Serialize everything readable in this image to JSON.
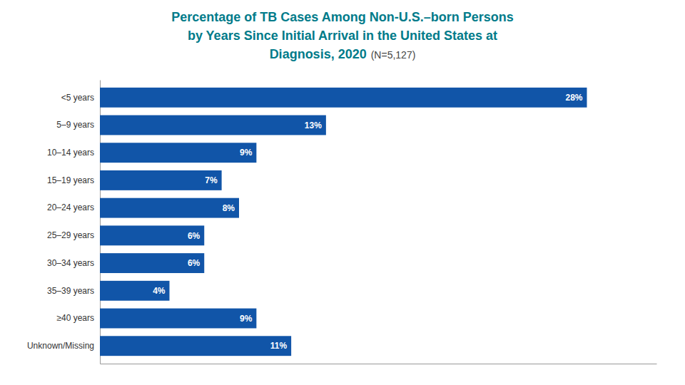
{
  "chart_data": {
    "type": "bar",
    "orientation": "horizontal",
    "title": [
      "Percentage of TB Cases Among Non-U.S.–born Persons",
      "by Years Since Initial Arrival in the United States at",
      "Diagnosis, 2020"
    ],
    "subtitle": "(N=5,127)",
    "categories": [
      "<5 years",
      "5–9 years",
      "10–14 years",
      "15–19 years",
      "20–24 years",
      "25–29 years",
      "30–34 years",
      "35–39 years",
      "≥40 years",
      "Unknown/Missing"
    ],
    "values": [
      28,
      13,
      9,
      7,
      8,
      6,
      6,
      4,
      9,
      11
    ],
    "value_labels": [
      "28%",
      "13%",
      "9%",
      "7%",
      "8%",
      "6%",
      "6%",
      "4%",
      "9%",
      "11%"
    ],
    "data_labels": true,
    "color": "#1155a8",
    "xlim": [
      0,
      32
    ],
    "tick_labels": "y",
    "grid": false
  }
}
